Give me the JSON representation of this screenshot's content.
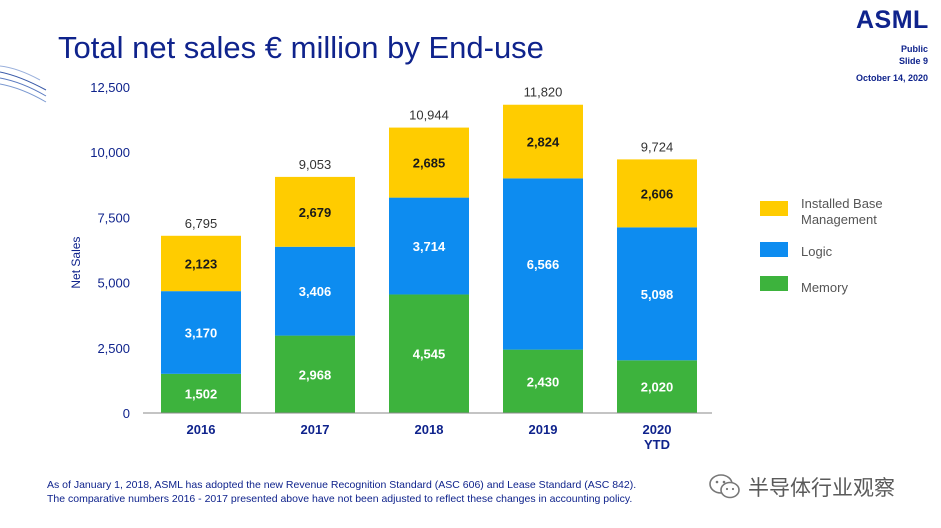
{
  "slide": {
    "title": "Total net sales € million by End-use",
    "logo": "ASML",
    "classification": "Public",
    "slide_number": "Slide 9",
    "date": "October 14, 2020",
    "footnote_line1": "As of January 1, 2018, ASML has adopted the new Revenue Recognition Standard (ASC 606) and Lease Standard (ASC 842).",
    "footnote_line2": "The comparative numbers 2016 - 2017 presented above have not been adjusted to reflect these changes in accounting policy.",
    "watermark": "半导体行业观察"
  },
  "colors": {
    "title": "#0f238c",
    "memory": "#3db33d",
    "logic": "#0d8cf0",
    "installed_base": "#ffcc00"
  },
  "chart_data": {
    "type": "bar",
    "stacked": true,
    "title": "",
    "xlabel": "",
    "ylabel": "Net Sales",
    "ylim": [
      0,
      12500
    ],
    "yticks": [
      0,
      2500,
      5000,
      7500,
      10000,
      12500
    ],
    "ytick_labels": [
      "0",
      "2,500",
      "5,000",
      "7,500",
      "10,000",
      "12,500"
    ],
    "grid": false,
    "legend_position": "right",
    "categories": [
      "2016",
      "2017",
      "2018",
      "2019",
      "2020\nYTD"
    ],
    "totals": [
      6795,
      9053,
      10944,
      11820,
      9724
    ],
    "total_labels": [
      "6,795",
      "9,053",
      "10,944",
      "11,820",
      "9,724"
    ],
    "series": [
      {
        "name": "Memory",
        "color": "#3db33d",
        "values": [
          1502,
          2968,
          4545,
          2430,
          2020
        ],
        "labels": [
          "1,502",
          "2,968",
          "4,545",
          "2,430",
          "2,020"
        ]
      },
      {
        "name": "Logic",
        "color": "#0d8cf0",
        "values": [
          3170,
          3406,
          3714,
          6566,
          5098
        ],
        "labels": [
          "3,170",
          "3,406",
          "3,714",
          "6,566",
          "5,098"
        ]
      },
      {
        "name": "Installed Base Management",
        "color": "#ffcc00",
        "values": [
          2123,
          2679,
          2685,
          2824,
          2606
        ],
        "labels": [
          "2,123",
          "2,679",
          "2,685",
          "2,824",
          "2,606"
        ]
      }
    ],
    "legend_order": [
      "Installed Base Management",
      "Logic",
      "Memory"
    ]
  }
}
